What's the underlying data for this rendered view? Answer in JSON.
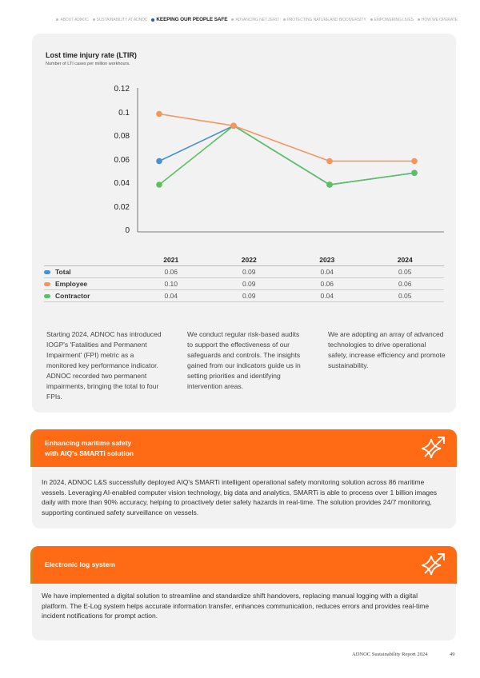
{
  "nav": {
    "items": [
      "ABOUT ADNOC",
      "SUSTAINABILITY AT ADNOC",
      "KEEPING OUR PEOPLE SAFE",
      "ADVANCING NET ZERO",
      "PROTECTING NATURE AND BIODIVERSITY",
      "EMPOWERING LIVES",
      "HOW WE OPERATE"
    ],
    "active": "KEEPING OUR PEOPLE SAFE"
  },
  "chart_data": {
    "type": "line",
    "title": "Lost time injury rate (LTIR)",
    "subtitle": "Number of LTI cases per million workhours.",
    "categories": [
      "2021",
      "2022",
      "2023",
      "2024"
    ],
    "yticks": [
      "0",
      "0.02",
      "0.04",
      "0.06",
      "0.08",
      "0.1",
      "0.12"
    ],
    "ylim": [
      0,
      0.12
    ],
    "grid": false,
    "series": [
      {
        "name": "Total",
        "color": "#4a8fd0",
        "values": [
          0.06,
          0.09,
          0.04,
          0.05
        ],
        "labels": [
          "0.06",
          "0.09",
          "0.04",
          "0.05"
        ]
      },
      {
        "name": "Employee",
        "color": "#f5955a",
        "values": [
          0.1,
          0.09,
          0.06,
          0.06
        ],
        "labels": [
          "0.10",
          "0.09",
          "0.06",
          "0.06"
        ]
      },
      {
        "name": "Contractor",
        "color": "#5cbf60",
        "values": [
          0.04,
          0.09,
          0.04,
          0.05
        ],
        "labels": [
          "0.04",
          "0.09",
          "0.04",
          "0.05"
        ]
      }
    ]
  },
  "paragraphs": [
    "Starting 2024, ADNOC has introduced IOGP's 'Fatalities and Permanent Impairment' (FPI) metric as a monitored key performance indicator. ADNOC recorded two permanent impairments, bringing the total to four FPIs.",
    "We conduct regular risk-based audits to support the effectiveness of our safeguards and controls. The insights gained from our indicators guide us in setting priorities and identifying intervention areas.",
    "We are adopting an array of advanced technologies to drive operational safety, increase efficiency and promote sustainability."
  ],
  "box1": {
    "title_line1": "Enhancing maritime safety",
    "title_line2": "with AIQ's SMARTi solution",
    "body": "In 2024, ADNOC L&S successfully deployed AIQ's SMARTi intelligent operational safety monitoring solution across 86 maritime vessels. Leveraging AI-enabled computer vision technology, big data and analytics, SMARTi is able to process over 1 billion images daily with more than 90% accuracy, helping to proactively deter safety hazards in real-time. The solution provides 24/7 monitoring, supporting continued safety surveillance on vessels."
  },
  "box2": {
    "title": "Electronic log system",
    "body": "We have implemented a digital solution to streamline and standardize shift handovers, replacing manual logging with a digital platform. The E-Log system helps accurate information transfer, enhances communication, reduces errors and provides real-time incident notifications for prompt action."
  },
  "footer": {
    "report": "ADNOC Sustainability Report 2024",
    "page": "49"
  },
  "colors": {
    "orange": "#ff6a14",
    "card": "#f2f2f2"
  }
}
